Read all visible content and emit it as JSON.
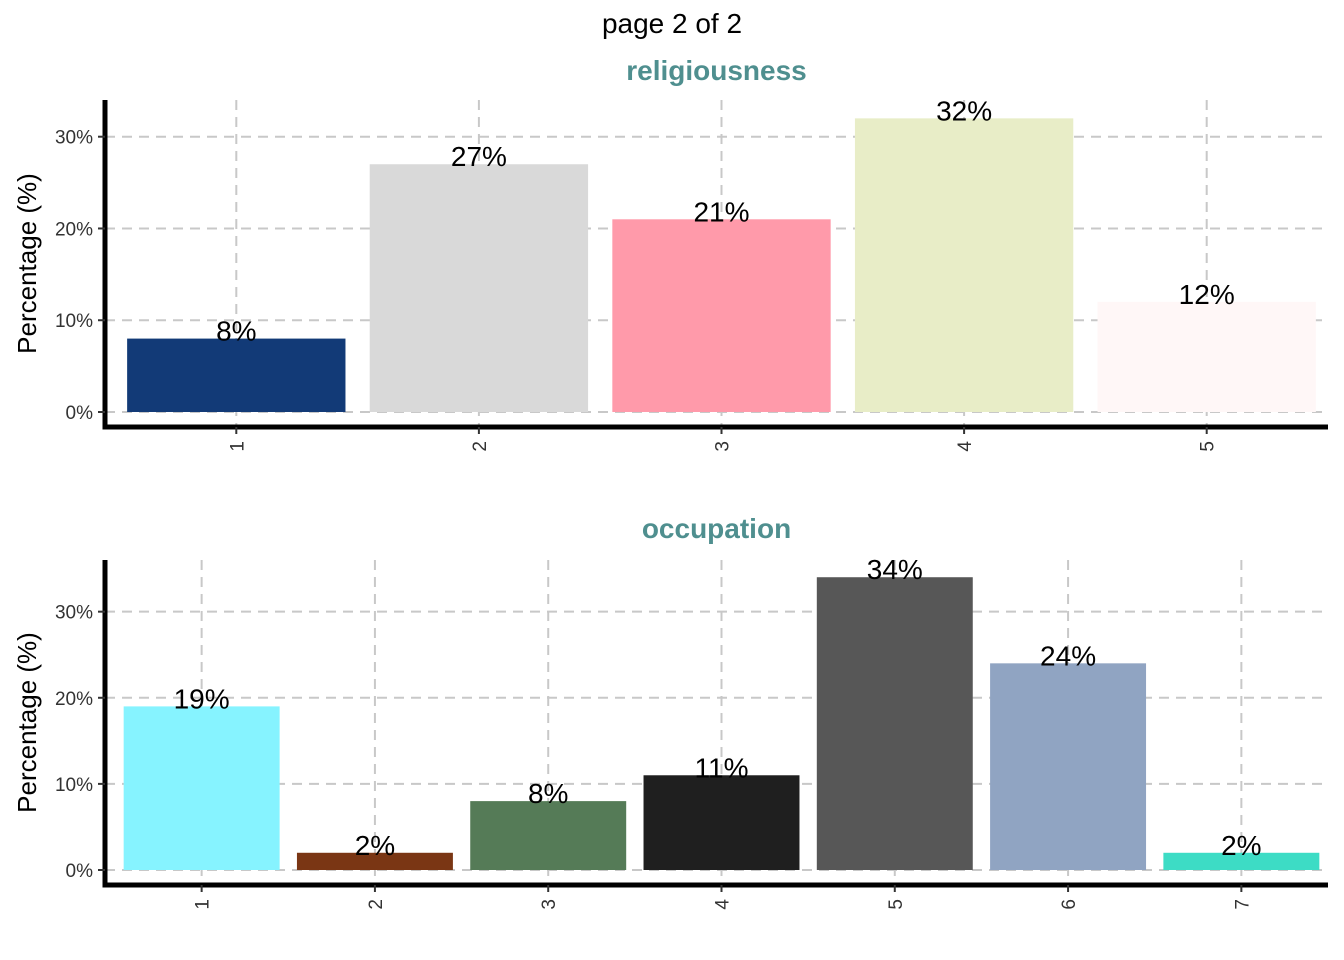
{
  "page_title": "page 2 of 2",
  "chart_data": [
    {
      "type": "bar",
      "title": "religiousness",
      "xlabel": "",
      "ylabel": "Percentage (%)",
      "ylim": [
        0,
        34
      ],
      "yticks": [
        0,
        10,
        20,
        30
      ],
      "ytick_labels": [
        "0%",
        "10%",
        "20%",
        "30%"
      ],
      "categories": [
        "1",
        "2",
        "3",
        "4",
        "5"
      ],
      "values": [
        8,
        27,
        21,
        32,
        12
      ],
      "data_labels": [
        "8%",
        "27%",
        "21%",
        "32%",
        "12%"
      ],
      "colors": [
        "#123a77",
        "#d9d9d9",
        "#ff9aaa",
        "#e8edc7",
        "#fff7f7"
      ],
      "grid": true,
      "legend": "none"
    },
    {
      "type": "bar",
      "title": "occupation",
      "xlabel": "",
      "ylabel": "Percentage (%)",
      "ylim": [
        0,
        36
      ],
      "yticks": [
        0,
        10,
        20,
        30
      ],
      "ytick_labels": [
        "0%",
        "10%",
        "20%",
        "30%"
      ],
      "categories": [
        "1",
        "2",
        "3",
        "4",
        "5",
        "6",
        "7"
      ],
      "values": [
        19,
        2,
        8,
        11,
        34,
        24,
        2
      ],
      "data_labels": [
        "19%",
        "2%",
        "8%",
        "11%",
        "34%",
        "24%",
        "2%"
      ],
      "colors": [
        "#86f3ff",
        "#7a3614",
        "#557b57",
        "#1f1f1f",
        "#575757",
        "#90a4c2",
        "#3ddcc5"
      ],
      "grid": true,
      "legend": "none"
    }
  ]
}
